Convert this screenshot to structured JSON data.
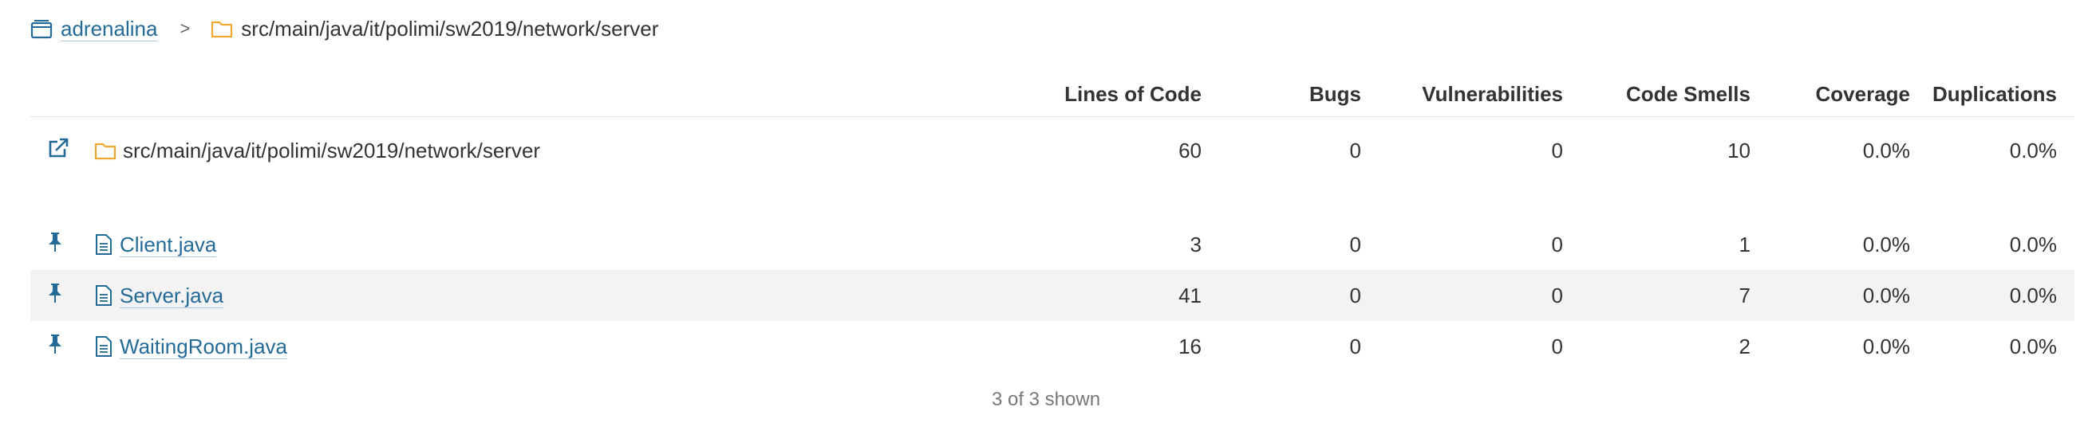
{
  "breadcrumb": {
    "project": "adrenalina",
    "separator": ">",
    "current_path": "src/main/java/it/polimi/sw2019/network/server"
  },
  "columns": [
    "Lines of Code",
    "Bugs",
    "Vulnerabilities",
    "Code Smells",
    "Coverage",
    "Duplications"
  ],
  "base_row": {
    "name": "src/main/java/it/polimi/sw2019/network/server",
    "loc": "60",
    "bugs": "0",
    "vulnerabilities": "0",
    "code_smells": "10",
    "coverage": "0.0%",
    "duplications": "0.0%"
  },
  "files": [
    {
      "name": "Client.java",
      "loc": "3",
      "bugs": "0",
      "vulnerabilities": "0",
      "code_smells": "1",
      "coverage": "0.0%",
      "duplications": "0.0%"
    },
    {
      "name": "Server.java",
      "loc": "41",
      "bugs": "0",
      "vulnerabilities": "0",
      "code_smells": "7",
      "coverage": "0.0%",
      "duplications": "0.0%"
    },
    {
      "name": "WaitingRoom.java",
      "loc": "16",
      "bugs": "0",
      "vulnerabilities": "0",
      "code_smells": "2",
      "coverage": "0.0%",
      "duplications": "0.0%"
    }
  ],
  "footer": "3 of 3 shown",
  "colors": {
    "link": "#236a97",
    "folder": "#f0a830",
    "row_alt": "#f3f3f3"
  },
  "icons": {
    "project": "project-icon",
    "folder": "folder-icon",
    "open": "external-link-icon",
    "pin": "pin-icon",
    "file": "file-icon"
  }
}
